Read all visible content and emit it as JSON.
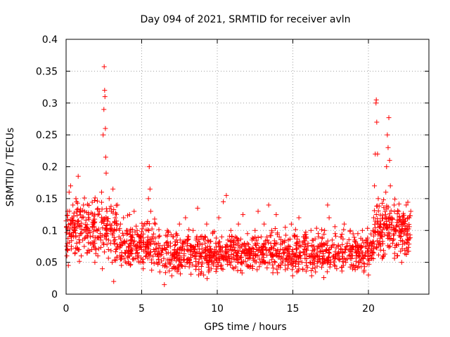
{
  "chart_data": {
    "type": "scatter",
    "title": "Day 094 of 2021, SRMTID for receiver avln",
    "xlabel": "GPS time / hours",
    "ylabel": "SRMTID / TECUs",
    "xlim": [
      0,
      24
    ],
    "ylim": [
      0,
      0.4
    ],
    "grid": true,
    "marker": "+",
    "color": "#ff0000",
    "xticks": [
      0,
      5,
      10,
      15,
      20
    ],
    "xtick_labels": [
      "0",
      "5",
      "10",
      "15",
      "20"
    ],
    "yticks": [
      0,
      0.05,
      0.1,
      0.15,
      0.2,
      0.25,
      0.3,
      0.35,
      0.4
    ],
    "ytick_labels": [
      "0",
      "0.05",
      "0.1",
      "0.15",
      "0.2",
      "0.25",
      "0.3",
      "0.35",
      "0.4"
    ],
    "series": [
      {
        "name": "SRMTID",
        "points": [
          [
            0.0,
            0.115
          ],
          [
            0.05,
            0.06
          ],
          [
            0.1,
            0.13
          ],
          [
            0.15,
            0.045
          ],
          [
            0.2,
            0.16
          ],
          [
            0.25,
            0.095
          ],
          [
            0.3,
            0.17
          ],
          [
            0.35,
            0.075
          ],
          [
            0.4,
            0.12
          ],
          [
            0.45,
            0.14
          ],
          [
            0.5,
            0.09
          ],
          [
            0.55,
            0.105
          ],
          [
            0.6,
            0.065
          ],
          [
            0.65,
            0.15
          ],
          [
            0.7,
            0.08
          ],
          [
            0.75,
            0.11
          ],
          [
            0.8,
            0.185
          ],
          [
            0.85,
            0.07
          ],
          [
            0.9,
            0.13
          ],
          [
            0.95,
            0.095
          ],
          [
            1.0,
            0.06
          ],
          [
            1.05,
            0.12
          ],
          [
            1.1,
            0.085
          ],
          [
            1.15,
            0.14
          ],
          [
            1.2,
            0.075
          ],
          [
            1.3,
            0.105
          ],
          [
            1.4,
            0.065
          ],
          [
            1.5,
            0.125
          ],
          [
            1.6,
            0.09
          ],
          [
            1.7,
            0.07
          ],
          [
            1.8,
            0.11
          ],
          [
            1.9,
            0.08
          ],
          [
            2.0,
            0.1
          ],
          [
            2.1,
            0.06
          ],
          [
            2.2,
            0.13
          ],
          [
            2.3,
            0.085
          ],
          [
            2.35,
            0.16
          ],
          [
            2.4,
            0.04
          ],
          [
            2.45,
            0.25
          ],
          [
            2.5,
            0.29
          ],
          [
            2.52,
            0.357
          ],
          [
            2.55,
            0.32
          ],
          [
            2.57,
            0.31
          ],
          [
            2.6,
            0.26
          ],
          [
            2.62,
            0.215
          ],
          [
            2.65,
            0.19
          ],
          [
            2.7,
            0.13
          ],
          [
            2.75,
            0.095
          ],
          [
            2.8,
            0.07
          ],
          [
            2.85,
            0.15
          ],
          [
            2.9,
            0.11
          ],
          [
            2.95,
            0.08
          ],
          [
            3.0,
            0.13
          ],
          [
            3.05,
            0.05
          ],
          [
            3.1,
            0.165
          ],
          [
            3.15,
            0.02
          ],
          [
            3.2,
            0.1
          ],
          [
            3.25,
            0.12
          ],
          [
            3.3,
            0.07
          ],
          [
            3.4,
            0.14
          ],
          [
            3.5,
            0.09
          ],
          [
            3.6,
            0.11
          ],
          [
            3.7,
            0.06
          ],
          [
            3.8,
            0.12
          ],
          [
            3.9,
            0.08
          ],
          [
            4.0,
            0.1
          ],
          [
            4.1,
            0.065
          ],
          [
            4.2,
            0.125
          ],
          [
            4.3,
            0.09
          ],
          [
            4.4,
            0.055
          ],
          [
            4.5,
            0.13
          ],
          [
            4.6,
            0.075
          ],
          [
            4.7,
            0.1
          ],
          [
            4.8,
            0.06
          ],
          [
            4.9,
            0.09
          ],
          [
            5.0,
            0.07
          ],
          [
            5.1,
            0.04
          ],
          [
            5.2,
            0.11
          ],
          [
            5.3,
            0.06
          ],
          [
            5.4,
            0.085
          ],
          [
            5.45,
            0.15
          ],
          [
            5.5,
            0.2
          ],
          [
            5.55,
            0.165
          ],
          [
            5.6,
            0.13
          ],
          [
            5.65,
            0.05
          ],
          [
            5.7,
            0.09
          ],
          [
            5.8,
            0.07
          ],
          [
            5.9,
            0.11
          ],
          [
            6.0,
            0.05
          ],
          [
            6.1,
            0.08
          ],
          [
            6.2,
            0.035
          ],
          [
            6.3,
            0.065
          ],
          [
            6.4,
            0.045
          ],
          [
            6.5,
            0.015
          ],
          [
            6.6,
            0.07
          ],
          [
            6.7,
            0.1
          ],
          [
            6.8,
            0.05
          ],
          [
            6.9,
            0.075
          ],
          [
            7.0,
            0.06
          ],
          [
            7.1,
            0.09
          ],
          [
            7.2,
            0.04
          ],
          [
            7.3,
            0.085
          ],
          [
            7.4,
            0.065
          ],
          [
            7.5,
            0.11
          ],
          [
            7.6,
            0.05
          ],
          [
            7.7,
            0.08
          ],
          [
            7.8,
            0.06
          ],
          [
            7.9,
            0.12
          ],
          [
            8.0,
            0.07
          ],
          [
            8.1,
            0.09
          ],
          [
            8.2,
            0.05
          ],
          [
            8.3,
            0.075
          ],
          [
            8.4,
            0.1
          ],
          [
            8.5,
            0.06
          ],
          [
            8.6,
            0.085
          ],
          [
            8.7,
            0.135
          ],
          [
            8.8,
            0.055
          ],
          [
            8.9,
            0.09
          ],
          [
            9.0,
            0.065
          ],
          [
            9.1,
            0.03
          ],
          [
            9.2,
            0.08
          ],
          [
            9.3,
            0.11
          ],
          [
            9.4,
            0.05
          ],
          [
            9.5,
            0.075
          ],
          [
            9.6,
            0.04
          ],
          [
            9.7,
            0.095
          ],
          [
            9.8,
            0.06
          ],
          [
            9.9,
            0.08
          ],
          [
            10.0,
            0.05
          ],
          [
            10.1,
            0.12
          ],
          [
            10.2,
            0.07
          ],
          [
            10.3,
            0.09
          ],
          [
            10.4,
            0.145
          ],
          [
            10.5,
            0.06
          ],
          [
            10.6,
            0.155
          ],
          [
            10.7,
            0.085
          ],
          [
            10.8,
            0.05
          ],
          [
            10.9,
            0.1
          ],
          [
            11.0,
            0.07
          ],
          [
            11.1,
            0.04
          ],
          [
            11.2,
            0.09
          ],
          [
            11.3,
            0.06
          ],
          [
            11.4,
            0.11
          ],
          [
            11.5,
            0.075
          ],
          [
            11.6,
            0.05
          ],
          [
            11.7,
            0.125
          ],
          [
            11.8,
            0.08
          ],
          [
            11.9,
            0.06
          ],
          [
            12.0,
            0.095
          ],
          [
            12.1,
            0.07
          ],
          [
            12.2,
            0.045
          ],
          [
            12.3,
            0.085
          ],
          [
            12.4,
            0.06
          ],
          [
            12.5,
            0.1
          ],
          [
            12.6,
            0.07
          ],
          [
            12.7,
            0.13
          ],
          [
            12.8,
            0.055
          ],
          [
            12.9,
            0.09
          ],
          [
            13.0,
            0.07
          ],
          [
            13.1,
            0.11
          ],
          [
            13.2,
            0.05
          ],
          [
            13.3,
            0.085
          ],
          [
            13.4,
            0.14
          ],
          [
            13.5,
            0.065
          ],
          [
            13.6,
            0.1
          ],
          [
            13.7,
            0.06
          ],
          [
            13.8,
            0.08
          ],
          [
            13.9,
            0.125
          ],
          [
            14.0,
            0.07
          ],
          [
            14.1,
            0.09
          ],
          [
            14.2,
            0.055
          ],
          [
            14.3,
            0.08
          ],
          [
            14.4,
            0.065
          ],
          [
            14.5,
            0.105
          ],
          [
            14.6,
            0.06
          ],
          [
            14.7,
            0.085
          ],
          [
            14.8,
            0.05
          ],
          [
            14.9,
            0.11
          ],
          [
            15.0,
            0.07
          ],
          [
            15.1,
            0.09
          ],
          [
            15.2,
            0.06
          ],
          [
            15.3,
            0.08
          ],
          [
            15.4,
            0.12
          ],
          [
            15.5,
            0.065
          ],
          [
            15.6,
            0.05
          ],
          [
            15.7,
            0.09
          ],
          [
            15.8,
            0.07
          ],
          [
            15.9,
            0.045
          ],
          [
            16.0,
            0.08
          ],
          [
            16.1,
            0.06
          ],
          [
            16.2,
            0.1
          ],
          [
            16.3,
            0.05
          ],
          [
            16.4,
            0.075
          ],
          [
            16.5,
            0.035
          ],
          [
            16.6,
            0.065
          ],
          [
            16.7,
            0.09
          ],
          [
            16.8,
            0.05
          ],
          [
            16.9,
            0.08
          ],
          [
            17.0,
            0.06
          ],
          [
            17.1,
            0.1
          ],
          [
            17.2,
            0.07
          ],
          [
            17.3,
            0.14
          ],
          [
            17.4,
            0.12
          ],
          [
            17.5,
            0.05
          ],
          [
            17.6,
            0.085
          ],
          [
            17.7,
            0.06
          ],
          [
            17.8,
            0.095
          ],
          [
            17.9,
            0.04
          ],
          [
            18.0,
            0.075
          ],
          [
            18.1,
            0.055
          ],
          [
            18.2,
            0.09
          ],
          [
            18.3,
            0.065
          ],
          [
            18.4,
            0.11
          ],
          [
            18.5,
            0.05
          ],
          [
            18.6,
            0.08
          ],
          [
            18.7,
            0.06
          ],
          [
            18.8,
            0.1
          ],
          [
            18.9,
            0.07
          ],
          [
            19.0,
            0.045
          ],
          [
            19.1,
            0.085
          ],
          [
            19.2,
            0.06
          ],
          [
            19.3,
            0.095
          ],
          [
            19.4,
            0.05
          ],
          [
            19.5,
            0.075
          ],
          [
            19.6,
            0.1
          ],
          [
            19.7,
            0.035
          ],
          [
            19.8,
            0.065
          ],
          [
            19.9,
            0.085
          ],
          [
            20.0,
            0.03
          ],
          [
            20.1,
            0.06
          ],
          [
            20.2,
            0.08
          ],
          [
            20.3,
            0.1
          ],
          [
            20.35,
            0.12
          ],
          [
            20.4,
            0.17
          ],
          [
            20.45,
            0.22
          ],
          [
            20.5,
            0.3
          ],
          [
            20.52,
            0.305
          ],
          [
            20.55,
            0.27
          ],
          [
            20.6,
            0.22
          ],
          [
            20.65,
            0.15
          ],
          [
            20.7,
            0.08
          ],
          [
            20.8,
            0.11
          ],
          [
            20.9,
            0.09
          ],
          [
            21.0,
            0.06
          ],
          [
            21.1,
            0.13
          ],
          [
            21.15,
            0.16
          ],
          [
            21.2,
            0.2
          ],
          [
            21.25,
            0.25
          ],
          [
            21.3,
            0.23
          ],
          [
            21.35,
            0.277
          ],
          [
            21.4,
            0.21
          ],
          [
            21.45,
            0.17
          ],
          [
            21.5,
            0.12
          ],
          [
            21.6,
            0.08
          ],
          [
            21.7,
            0.14
          ],
          [
            21.8,
            0.1
          ],
          [
            21.9,
            0.06
          ],
          [
            22.0,
            0.13
          ],
          [
            22.1,
            0.09
          ],
          [
            22.2,
            0.05
          ],
          [
            22.3,
            0.11
          ],
          [
            22.4,
            0.08
          ],
          [
            22.5,
            0.14
          ],
          [
            22.6,
            0.095
          ],
          [
            22.7,
            0.12
          ],
          [
            22.8,
            0.13
          ]
        ]
      }
    ],
    "noise_bands": [
      {
        "x0": 0.0,
        "x1": 3.5,
        "lo": 0.04,
        "hi": 0.16,
        "n": 230
      },
      {
        "x0": 3.5,
        "x1": 6.0,
        "lo": 0.03,
        "hi": 0.13,
        "n": 170
      },
      {
        "x0": 6.0,
        "x1": 20.3,
        "lo": 0.02,
        "hi": 0.11,
        "n": 900
      },
      {
        "x0": 20.3,
        "x1": 22.8,
        "lo": 0.04,
        "hi": 0.16,
        "n": 200
      }
    ]
  }
}
